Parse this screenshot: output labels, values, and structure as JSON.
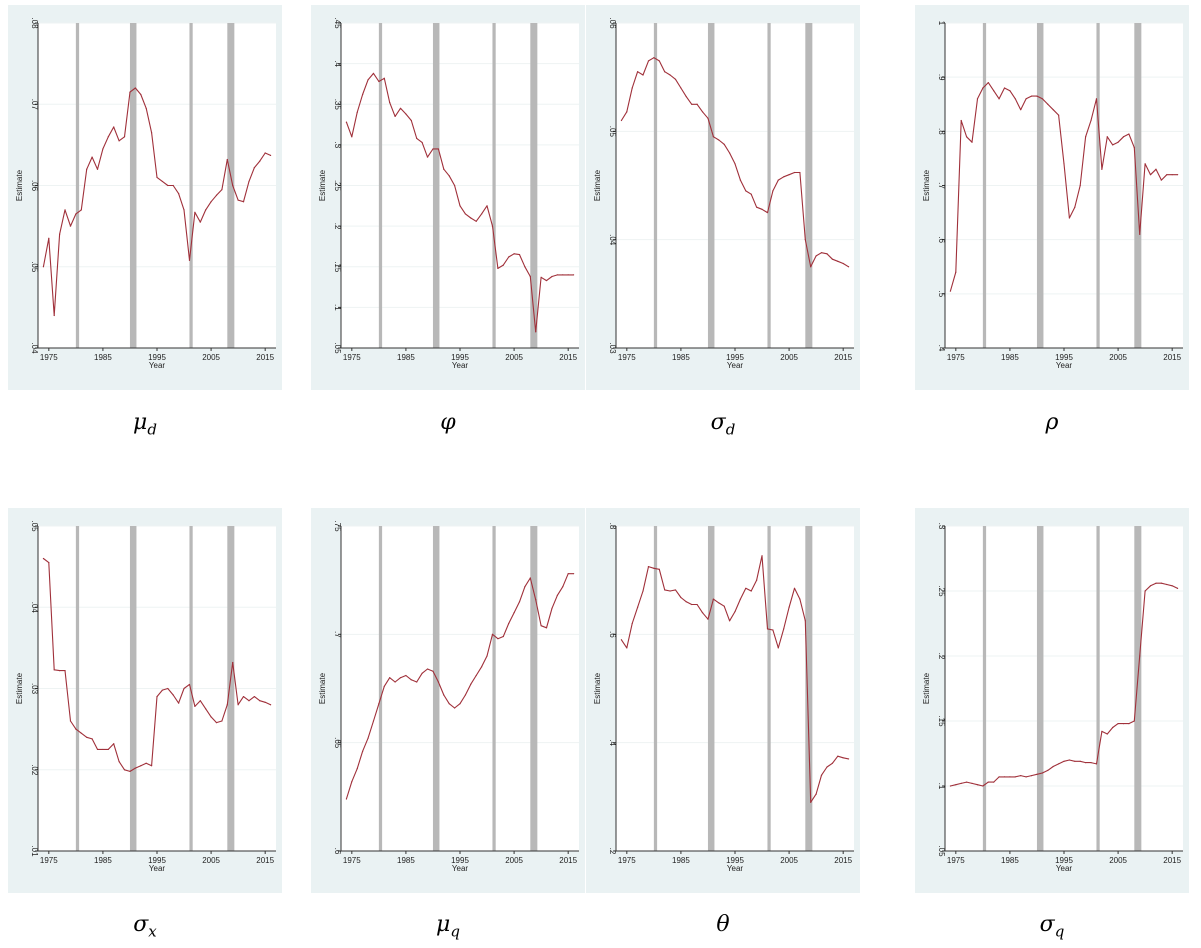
{
  "chart_data": [
    {
      "type": "line",
      "name": "mu_d",
      "caption": "μ",
      "caption_sub": "d",
      "xlabel": "Year",
      "ylabel": "Estimate",
      "xticks": [
        1975,
        1985,
        1995,
        2005,
        2015
      ],
      "xlim": [
        1973,
        2017
      ],
      "yticks": [
        ".04",
        ".05",
        ".06",
        ".07",
        ".08"
      ],
      "ylim": [
        0.04,
        0.08
      ],
      "recessions": [
        [
          1980,
          1980.6
        ],
        [
          1990,
          1991.2
        ],
        [
          2001,
          2001.6
        ],
        [
          2008,
          2009.3
        ]
      ],
      "series": [
        {
          "x": [
            1974,
            1975,
            1976,
            1977,
            1978,
            1979,
            1980,
            1981,
            1982,
            1983,
            1984,
            1985,
            1986,
            1987,
            1988,
            1989,
            1990,
            1991,
            1992,
            1993,
            1994,
            1995,
            1996,
            1997,
            1998,
            1999,
            2000,
            2001,
            2002,
            2003,
            2004,
            2005,
            2006,
            2007,
            2008,
            2009,
            2010,
            2011,
            2012,
            2013,
            2014,
            2015,
            2016
          ],
          "y": [
            0.05,
            0.0535,
            0.044,
            0.054,
            0.057,
            0.055,
            0.0565,
            0.057,
            0.062,
            0.0635,
            0.062,
            0.0645,
            0.066,
            0.0672,
            0.0655,
            0.066,
            0.0715,
            0.072,
            0.0712,
            0.0695,
            0.0665,
            0.061,
            0.0605,
            0.06,
            0.06,
            0.059,
            0.057,
            0.0508,
            0.0567,
            0.0555,
            0.057,
            0.058,
            0.0588,
            0.0595,
            0.0632,
            0.06,
            0.0582,
            0.058,
            0.0605,
            0.0622,
            0.063,
            0.064,
            0.0637
          ]
        }
      ]
    },
    {
      "type": "line",
      "name": "phi",
      "caption": "φ",
      "caption_sub": "",
      "xlabel": "Year",
      "ylabel": "Estimate",
      "xticks": [
        1975,
        1985,
        1995,
        2005,
        2015
      ],
      "xlim": [
        1973,
        2017
      ],
      "yticks": [
        ".05",
        ".1",
        ".15",
        ".2",
        ".25",
        ".3",
        ".35",
        ".4",
        ".45"
      ],
      "ylim": [
        0.05,
        0.45
      ],
      "recessions": [
        [
          1980,
          1980.6
        ],
        [
          1990,
          1991.2
        ],
        [
          2001,
          2001.6
        ],
        [
          2008,
          2009.3
        ]
      ],
      "series": [
        {
          "x": [
            1974,
            1975,
            1976,
            1977,
            1978,
            1979,
            1980,
            1981,
            1982,
            1983,
            1984,
            1985,
            1986,
            1987,
            1988,
            1989,
            1990,
            1991,
            1992,
            1993,
            1994,
            1995,
            1996,
            1997,
            1998,
            1999,
            2000,
            2001,
            2002,
            2003,
            2004,
            2005,
            2006,
            2007,
            2008,
            2009,
            2010,
            2011,
            2012,
            2013,
            2014,
            2015,
            2016
          ],
          "y": [
            0.328,
            0.31,
            0.34,
            0.362,
            0.38,
            0.388,
            0.378,
            0.382,
            0.352,
            0.335,
            0.345,
            0.338,
            0.33,
            0.308,
            0.303,
            0.285,
            0.295,
            0.295,
            0.27,
            0.262,
            0.25,
            0.225,
            0.215,
            0.21,
            0.206,
            0.215,
            0.225,
            0.2,
            0.148,
            0.152,
            0.162,
            0.166,
            0.165,
            0.15,
            0.138,
            0.07,
            0.137,
            0.133,
            0.138,
            0.14,
            0.14,
            0.14,
            0.14
          ]
        }
      ]
    },
    {
      "type": "line",
      "name": "sigma_d",
      "caption": "σ",
      "caption_sub": "d",
      "xlabel": "Year",
      "ylabel": "Estimate",
      "xticks": [
        1975,
        1985,
        1995,
        2005,
        2015
      ],
      "xlim": [
        1973,
        2017
      ],
      "yticks": [
        ".03",
        ".04",
        ".05",
        ".06"
      ],
      "ylim": [
        0.03,
        0.06
      ],
      "recessions": [
        [
          1980,
          1980.6
        ],
        [
          1990,
          1991.2
        ],
        [
          2001,
          2001.6
        ],
        [
          2008,
          2009.3
        ]
      ],
      "series": [
        {
          "x": [
            1974,
            1975,
            1976,
            1977,
            1978,
            1979,
            1980,
            1981,
            1982,
            1983,
            1984,
            1985,
            1986,
            1987,
            1988,
            1989,
            1990,
            1991,
            1992,
            1993,
            1994,
            1995,
            1996,
            1997,
            1998,
            1999,
            2000,
            2001,
            2002,
            2003,
            2004,
            2005,
            2006,
            2007,
            2008,
            2009,
            2010,
            2011,
            2012,
            2013,
            2014,
            2015,
            2016
          ],
          "y": [
            0.051,
            0.0518,
            0.054,
            0.0555,
            0.0552,
            0.0565,
            0.0568,
            0.0565,
            0.0555,
            0.0552,
            0.0548,
            0.054,
            0.0532,
            0.0525,
            0.0525,
            0.0518,
            0.0512,
            0.0495,
            0.0492,
            0.0488,
            0.048,
            0.047,
            0.0455,
            0.0445,
            0.0442,
            0.043,
            0.0428,
            0.0425,
            0.0445,
            0.0455,
            0.0458,
            0.046,
            0.0462,
            0.0462,
            0.04,
            0.0375,
            0.0385,
            0.0388,
            0.0387,
            0.0382,
            0.038,
            0.0378,
            0.0375
          ]
        }
      ]
    },
    {
      "type": "line",
      "name": "rho",
      "caption": "ρ",
      "caption_sub": "",
      "xlabel": "Year",
      "ylabel": "Estimate",
      "xticks": [
        1975,
        1985,
        1995,
        2005,
        2015
      ],
      "xlim": [
        1973,
        2017
      ],
      "yticks": [
        ".4",
        ".5",
        ".6",
        ".7",
        ".8",
        ".9",
        "1"
      ],
      "ylim": [
        0.4,
        1.0
      ],
      "recessions": [
        [
          1980,
          1980.6
        ],
        [
          1990,
          1991.2
        ],
        [
          2001,
          2001.6
        ],
        [
          2008,
          2009.3
        ]
      ],
      "series": [
        {
          "x": [
            1974,
            1975,
            1976,
            1977,
            1978,
            1979,
            1980,
            1981,
            1982,
            1983,
            1984,
            1985,
            1986,
            1987,
            1988,
            1989,
            1990,
            1991,
            1992,
            1993,
            1994,
            1995,
            1996,
            1997,
            1998,
            1999,
            2000,
            2001,
            2002,
            2003,
            2004,
            2005,
            2006,
            2007,
            2008,
            2009,
            2010,
            2011,
            2012,
            2013,
            2014,
            2015,
            2016
          ],
          "y": [
            0.505,
            0.54,
            0.82,
            0.79,
            0.78,
            0.86,
            0.88,
            0.89,
            0.875,
            0.86,
            0.88,
            0.875,
            0.86,
            0.84,
            0.86,
            0.865,
            0.865,
            0.86,
            0.85,
            0.84,
            0.83,
            0.74,
            0.64,
            0.66,
            0.7,
            0.79,
            0.82,
            0.86,
            0.73,
            0.79,
            0.775,
            0.78,
            0.79,
            0.795,
            0.77,
            0.61,
            0.74,
            0.72,
            0.73,
            0.71,
            0.72,
            0.72,
            0.72
          ]
        }
      ]
    },
    {
      "type": "line",
      "name": "sigma_x",
      "caption": "σ",
      "caption_sub": "x",
      "xlabel": "Year",
      "ylabel": "Estimate",
      "xticks": [
        1975,
        1985,
        1995,
        2005,
        2015
      ],
      "xlim": [
        1973,
        2017
      ],
      "yticks": [
        ".01",
        ".02",
        ".03",
        ".04",
        ".05"
      ],
      "ylim": [
        0.01,
        0.05
      ],
      "recessions": [
        [
          1980,
          1980.6
        ],
        [
          1990,
          1991.2
        ],
        [
          2001,
          2001.6
        ],
        [
          2008,
          2009.3
        ]
      ],
      "series": [
        {
          "x": [
            1974,
            1975,
            1976,
            1977,
            1978,
            1979,
            1980,
            1981,
            1982,
            1983,
            1984,
            1985,
            1986,
            1987,
            1988,
            1989,
            1990,
            1991,
            1992,
            1993,
            1994,
            1995,
            1996,
            1997,
            1998,
            1999,
            2000,
            2001,
            2002,
            2003,
            2004,
            2005,
            2006,
            2007,
            2008,
            2009,
            2010,
            2011,
            2012,
            2013,
            2014,
            2015,
            2016
          ],
          "y": [
            0.046,
            0.0455,
            0.0323,
            0.0322,
            0.0322,
            0.026,
            0.025,
            0.0245,
            0.024,
            0.0238,
            0.0225,
            0.0225,
            0.0225,
            0.0232,
            0.021,
            0.02,
            0.0198,
            0.0202,
            0.0205,
            0.0208,
            0.0205,
            0.029,
            0.0298,
            0.03,
            0.0292,
            0.0282,
            0.03,
            0.0305,
            0.0278,
            0.0285,
            0.0275,
            0.0265,
            0.0258,
            0.026,
            0.028,
            0.0332,
            0.028,
            0.029,
            0.0285,
            0.029,
            0.0285,
            0.0283,
            0.028
          ]
        }
      ]
    },
    {
      "type": "line",
      "name": "mu_q",
      "caption": "μ",
      "caption_sub": "q",
      "xlabel": "Year",
      "ylabel": "Estimate",
      "xticks": [
        1975,
        1985,
        1995,
        2005,
        2015
      ],
      "xlim": [
        1973,
        2017
      ],
      "yticks": [
        ".6",
        ".65",
        ".7",
        ".75"
      ],
      "ylim": [
        0.6,
        0.75
      ],
      "recessions": [
        [
          1980,
          1980.6
        ],
        [
          1990,
          1991.2
        ],
        [
          2001,
          2001.6
        ],
        [
          2008,
          2009.3
        ]
      ],
      "series": [
        {
          "x": [
            1974,
            1975,
            1976,
            1977,
            1978,
            1979,
            1980,
            1981,
            1982,
            1983,
            1984,
            1985,
            1986,
            1987,
            1988,
            1989,
            1990,
            1991,
            1992,
            1993,
            1994,
            1995,
            1996,
            1997,
            1998,
            1999,
            2000,
            2001,
            2002,
            2003,
            2004,
            2005,
            2006,
            2007,
            2008,
            2009,
            2010,
            2011,
            2012,
            2013,
            2014,
            2015,
            2016
          ],
          "y": [
            0.624,
            0.632,
            0.638,
            0.646,
            0.652,
            0.66,
            0.668,
            0.676,
            0.68,
            0.678,
            0.68,
            0.681,
            0.679,
            0.678,
            0.682,
            0.684,
            0.683,
            0.678,
            0.672,
            0.668,
            0.666,
            0.668,
            0.672,
            0.677,
            0.681,
            0.685,
            0.69,
            0.7,
            0.698,
            0.699,
            0.705,
            0.71,
            0.715,
            0.722,
            0.726,
            0.716,
            0.704,
            0.703,
            0.712,
            0.718,
            0.722,
            0.728,
            0.728
          ]
        }
      ]
    },
    {
      "type": "line",
      "name": "theta",
      "caption": "θ",
      "caption_sub": "",
      "xlabel": "Year",
      "ylabel": "Estimate",
      "xticks": [
        1975,
        1985,
        1995,
        2005,
        2015
      ],
      "xlim": [
        1973,
        2017
      ],
      "yticks": [
        ".2",
        ".4",
        ".6",
        ".8"
      ],
      "ylim": [
        0.2,
        0.8
      ],
      "recessions": [
        [
          1980,
          1980.6
        ],
        [
          1990,
          1991.2
        ],
        [
          2001,
          2001.6
        ],
        [
          2008,
          2009.3
        ]
      ],
      "series": [
        {
          "x": [
            1974,
            1975,
            1976,
            1977,
            1978,
            1979,
            1980,
            1981,
            1982,
            1983,
            1984,
            1985,
            1986,
            1987,
            1988,
            1989,
            1990,
            1991,
            1992,
            1993,
            1994,
            1995,
            1996,
            1997,
            1998,
            1999,
            2000,
            2001,
            2002,
            2003,
            2004,
            2005,
            2006,
            2007,
            2008,
            2009,
            2010,
            2011,
            2012,
            2013,
            2014,
            2015,
            2016
          ],
          "y": [
            0.59,
            0.575,
            0.62,
            0.65,
            0.68,
            0.725,
            0.722,
            0.72,
            0.682,
            0.68,
            0.682,
            0.668,
            0.66,
            0.655,
            0.655,
            0.64,
            0.628,
            0.665,
            0.658,
            0.652,
            0.625,
            0.642,
            0.665,
            0.685,
            0.68,
            0.7,
            0.745,
            0.61,
            0.608,
            0.575,
            0.61,
            0.65,
            0.685,
            0.665,
            0.625,
            0.29,
            0.305,
            0.34,
            0.355,
            0.362,
            0.375,
            0.372,
            0.37
          ]
        }
      ]
    },
    {
      "type": "line",
      "name": "sigma_q",
      "caption": "σ",
      "caption_sub": "q",
      "xlabel": "Year",
      "ylabel": "Estimate",
      "xticks": [
        1975,
        1985,
        1995,
        2005,
        2015
      ],
      "xlim": [
        1973,
        2017
      ],
      "yticks": [
        ".05",
        ".1",
        ".15",
        ".2",
        ".25",
        ".3"
      ],
      "ylim": [
        0.05,
        0.3
      ],
      "recessions": [
        [
          1980,
          1980.6
        ],
        [
          1990,
          1991.2
        ],
        [
          2001,
          2001.6
        ],
        [
          2008,
          2009.3
        ]
      ],
      "series": [
        {
          "x": [
            1974,
            1975,
            1976,
            1977,
            1978,
            1979,
            1980,
            1981,
            1982,
            1983,
            1984,
            1985,
            1986,
            1987,
            1988,
            1989,
            1990,
            1991,
            1992,
            1993,
            1994,
            1995,
            1996,
            1997,
            1998,
            1999,
            2000,
            2001,
            2002,
            2003,
            2004,
            2005,
            2006,
            2007,
            2008,
            2009,
            2010,
            2011,
            2012,
            2013,
            2014,
            2015,
            2016
          ],
          "y": [
            0.1,
            0.101,
            0.102,
            0.103,
            0.102,
            0.101,
            0.1,
            0.103,
            0.103,
            0.107,
            0.107,
            0.107,
            0.107,
            0.108,
            0.107,
            0.108,
            0.109,
            0.11,
            0.112,
            0.115,
            0.117,
            0.119,
            0.12,
            0.119,
            0.119,
            0.118,
            0.118,
            0.117,
            0.142,
            0.14,
            0.145,
            0.148,
            0.148,
            0.148,
            0.15,
            0.2,
            0.25,
            0.254,
            0.256,
            0.256,
            0.255,
            0.254,
            0.252
          ]
        }
      ]
    }
  ]
}
